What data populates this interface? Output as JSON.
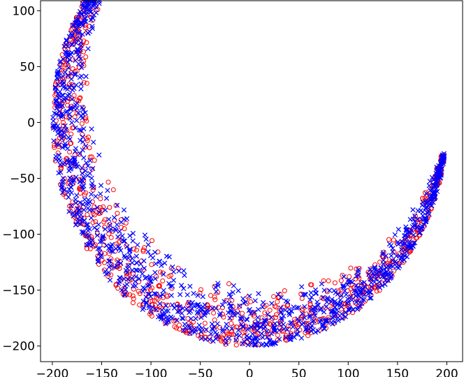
{
  "chart_data": {
    "type": "scatter",
    "title": "",
    "xlabel": "",
    "ylabel": "",
    "xlim": [
      -212,
      216
    ],
    "ylim": [
      -214,
      109
    ],
    "x_ticks": [
      -200,
      -150,
      -100,
      -50,
      0,
      50,
      100,
      150,
      200
    ],
    "y_ticks": [
      100,
      50,
      0,
      -50,
      -100,
      -150,
      -200
    ],
    "x_tick_labels": [
      "−200",
      "−150",
      "−100",
      "−50",
      "0",
      "50",
      "100",
      "150",
      "200"
    ],
    "y_tick_labels": [
      "100",
      "50",
      "0",
      "−50",
      "−100",
      "−150",
      "−200"
    ],
    "grid": false,
    "legend": "none",
    "series": [
      {
        "marker": "o",
        "color": "#ff0000",
        "shape": "crescent",
        "center": [
          0,
          0
        ],
        "outer_radius": 200,
        "inner_radius_range": [
          140,
          196
        ],
        "angle_range_deg": [
          -8,
          150
        ],
        "point_count": 900
      },
      {
        "marker": "x",
        "color": "#0000ff",
        "shape": "crescent",
        "center": [
          0,
          0
        ],
        "outer_radius": 200,
        "inner_radius_range": [
          140,
          196
        ],
        "angle_range_deg": [
          -8,
          150
        ],
        "point_count": 1300
      }
    ]
  }
}
